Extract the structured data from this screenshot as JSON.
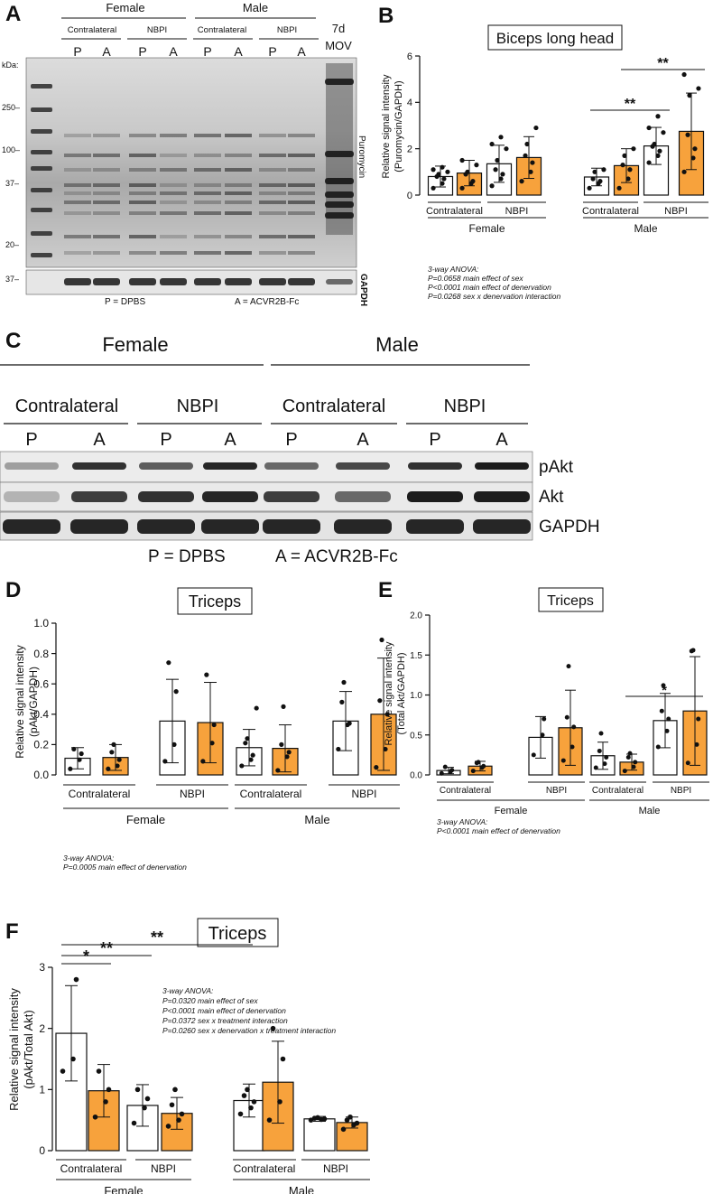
{
  "colors": {
    "orange": "#F7A23C",
    "white": "#FFFFFF",
    "axis": "#111111",
    "blot_bg": "#e9e9e9"
  },
  "panels": {
    "A": "A",
    "B": "B",
    "C": "C",
    "D": "D",
    "E": "E",
    "F": "F"
  },
  "blot_a": {
    "groups": [
      "Female",
      "Male"
    ],
    "subgroups": [
      "Contralateral",
      "NBPI",
      "Contralateral",
      "NBPI"
    ],
    "lanes": [
      "P",
      "A",
      "P",
      "A",
      "P",
      "A",
      "P",
      "A"
    ],
    "extra_lane": [
      "7d",
      "MOV"
    ],
    "kda_title": "kDa:",
    "markers": [
      "250–",
      "100–",
      "37–",
      "20–",
      "37–"
    ],
    "side_labels": [
      "Puromycin",
      "GAPDH"
    ],
    "legend": [
      "P = DPBS",
      "A = ACVR2B-Fc"
    ]
  },
  "blot_c": {
    "groups": [
      "Female",
      "Male"
    ],
    "subgroups": [
      "Contralateral",
      "NBPI",
      "Contralateral",
      "NBPI"
    ],
    "lanes": [
      "P",
      "A",
      "P",
      "A",
      "P",
      "A",
      "P",
      "A"
    ],
    "rows": [
      "pAkt",
      "Akt",
      "GAPDH"
    ],
    "legend": [
      "P = DPBS",
      "A = ACVR2B-Fc"
    ]
  },
  "chart_data": [
    {
      "id": "B",
      "type": "bar",
      "title": "Biceps long head",
      "ylabel": [
        "Relative signal intensity",
        "(Puromycin/GAPDH)"
      ],
      "ylim": [
        0,
        6
      ],
      "yticks": [
        "0",
        "2",
        "4",
        "6"
      ],
      "categories": [
        "Female Contralateral P",
        "Female Contralateral A",
        "Female NBPI P",
        "Female NBPI A",
        "Male Contralateral P",
        "Male Contralateral A",
        "Male NBPI P",
        "Male NBPI A"
      ],
      "series": [
        {
          "values": [
            0.8,
            0.95,
            1.35,
            1.62,
            0.78,
            1.27,
            2.12,
            2.75
          ]
        }
      ],
      "sd": [
        0.45,
        0.55,
        0.8,
        0.9,
        0.38,
        0.73,
        0.8,
        1.65
      ],
      "points": [
        [
          0.3,
          0.5,
          0.7,
          0.8,
          0.9,
          1.0,
          1.1,
          1.2
        ],
        [
          0.3,
          0.5,
          0.6,
          0.9,
          1.0,
          1.3,
          1.5
        ],
        [
          0.4,
          0.7,
          0.9,
          1.1,
          1.5,
          2.0,
          2.2,
          2.5
        ],
        [
          0.6,
          1.0,
          1.4,
          1.7,
          2.2,
          2.9
        ],
        [
          0.3,
          0.5,
          0.6,
          0.7,
          1.0,
          1.1
        ],
        [
          0.3,
          0.7,
          1.1,
          1.3,
          1.7,
          2.0
        ],
        [
          1.4,
          1.7,
          1.9,
          2.1,
          2.2,
          2.7,
          2.9,
          3.4
        ],
        [
          1.0,
          1.6,
          2.0,
          2.6,
          4.3,
          4.6,
          5.2
        ]
      ],
      "groups": [
        "Female",
        "Male"
      ],
      "subgroups": [
        "Contralateral",
        "NBPI",
        "Contralateral",
        "NBPI"
      ],
      "sig": [
        {
          "text": "**"
        },
        {
          "text": "**"
        }
      ],
      "anova": [
        "3-way ANOVA:",
        "P=0.0658 main effect of sex",
        "P<0.0001 main effect of denervation",
        "P=0.0268 sex x denervation interaction"
      ]
    },
    {
      "id": "D",
      "type": "bar",
      "title": "Triceps",
      "ylabel": [
        "Relative signal intensity",
        "(pAkt/GAPDH)"
      ],
      "ylim": [
        0,
        1.0
      ],
      "yticks": [
        "0.0",
        "0.2",
        "0.4",
        "0.6",
        "0.8",
        "1.0"
      ],
      "categories": [
        "Female Contralateral P",
        "Female Contralateral A",
        "Female NBPI P",
        "Female NBPI A",
        "Male Contralateral P",
        "Male Contralateral A",
        "Male NBPI P",
        "Male NBPI A"
      ],
      "series": [
        {
          "values": [
            0.11,
            0.115,
            0.355,
            0.345,
            0.18,
            0.175,
            0.355,
            0.4
          ]
        }
      ],
      "sd": [
        0.07,
        0.085,
        0.275,
        0.265,
        0.12,
        0.155,
        0.195,
        0.37
      ],
      "points": [
        [
          0.04,
          0.1,
          0.14,
          0.17
        ],
        [
          0.04,
          0.06,
          0.1,
          0.15,
          0.2
        ],
        [
          0.09,
          0.2,
          0.55,
          0.74
        ],
        [
          0.09,
          0.21,
          0.33,
          0.66
        ],
        [
          0.06,
          0.1,
          0.13,
          0.21,
          0.24,
          0.44
        ],
        [
          0.03,
          0.12,
          0.15,
          0.2,
          0.45
        ],
        [
          0.17,
          0.33,
          0.34,
          0.48,
          0.61
        ],
        [
          0.05,
          0.17,
          0.4,
          0.49,
          0.89
        ]
      ],
      "groups": [
        "Female",
        "Male"
      ],
      "subgroups": [
        "Contralateral",
        "NBPI",
        "Contralateral",
        "NBPI"
      ],
      "anova": [
        "3-way ANOVA:",
        "P=0.0005 main effect of denervation"
      ]
    },
    {
      "id": "E",
      "type": "bar",
      "title": "Triceps",
      "ylabel": [
        "Relative signal intensity",
        "(Total Akt/GAPDH)"
      ],
      "ylim": [
        0,
        2.0
      ],
      "yticks": [
        "0.0",
        "0.5",
        "1.0",
        "1.5",
        "2.0"
      ],
      "categories": [
        "Female Contralateral P",
        "Female Contralateral A",
        "Female NBPI P",
        "Female NBPI A",
        "Male Contralateral P",
        "Male Contralateral A",
        "Male NBPI P",
        "Male NBPI A"
      ],
      "series": [
        {
          "values": [
            0.055,
            0.11,
            0.47,
            0.59,
            0.24,
            0.16,
            0.68,
            0.8
          ]
        }
      ],
      "sd": [
        0.04,
        0.06,
        0.26,
        0.47,
        0.17,
        0.1,
        0.34,
        0.68
      ],
      "points": [
        [
          0.02,
          0.04,
          0.06,
          0.1
        ],
        [
          0.05,
          0.09,
          0.11,
          0.15,
          0.16
        ],
        [
          0.25,
          0.5,
          0.7
        ],
        [
          0.18,
          0.35,
          0.6,
          0.72,
          1.36
        ],
        [
          0.09,
          0.14,
          0.22,
          0.3,
          0.52
        ],
        [
          0.05,
          0.1,
          0.16,
          0.22,
          0.27
        ],
        [
          0.35,
          0.55,
          0.7,
          0.8,
          1.12
        ],
        [
          0.15,
          0.38,
          0.7,
          1.55,
          1.56
        ]
      ],
      "groups": [
        "Female",
        "Male"
      ],
      "subgroups": [
        "Contralateral",
        "NBPI",
        "Contralateral",
        "NBPI"
      ],
      "sig": [
        {
          "text": "*"
        }
      ],
      "anova": [
        "3-way ANOVA:",
        "P<0.0001 main effect of denervation"
      ]
    },
    {
      "id": "F",
      "type": "bar",
      "title": "Triceps",
      "ylabel": [
        "Relative signal intensity",
        "(pAkt/Total Akt)"
      ],
      "ylim": [
        0,
        3
      ],
      "yticks": [
        "0",
        "1",
        "2",
        "3"
      ],
      "categories": [
        "Female Contralateral P",
        "Female Contralateral A",
        "Female NBPI P",
        "Female NBPI A",
        "Male Contralateral P",
        "Male Contralateral A",
        "Male NBPI P",
        "Male NBPI A"
      ],
      "series": [
        {
          "values": [
            1.92,
            0.98,
            0.74,
            0.61,
            0.82,
            1.12,
            0.52,
            0.46
          ]
        }
      ],
      "sd": [
        0.78,
        0.43,
        0.34,
        0.26,
        0.27,
        0.67,
        0.04,
        0.09
      ],
      "points": [
        [
          1.3,
          1.5,
          2.8
        ],
        [
          0.55,
          0.8,
          1.0,
          1.3
        ],
        [
          0.45,
          0.7,
          0.85,
          1.0
        ],
        [
          0.4,
          0.5,
          0.6,
          0.75,
          1.0
        ],
        [
          0.6,
          0.7,
          0.8,
          0.9,
          1.0
        ],
        [
          0.5,
          0.8,
          1.5,
          2.0
        ],
        [
          0.5,
          0.51,
          0.52,
          0.53,
          0.54
        ],
        [
          0.35,
          0.42,
          0.45,
          0.5,
          0.55
        ]
      ],
      "groups": [
        "Female",
        "Male"
      ],
      "subgroups": [
        "Contralateral",
        "NBPI",
        "Contralateral",
        "NBPI"
      ],
      "sig": [
        {
          "text": "*"
        },
        {
          "text": "**"
        },
        {
          "text": "**"
        }
      ],
      "anova": [
        "3-way ANOVA:",
        "P=0.0320 main effect of sex",
        "P<0.0001 main effect of denervation",
        "P=0.0372 sex x treatment interaction",
        "P=0.0260 sex x denervation x treatment interaction"
      ]
    }
  ]
}
